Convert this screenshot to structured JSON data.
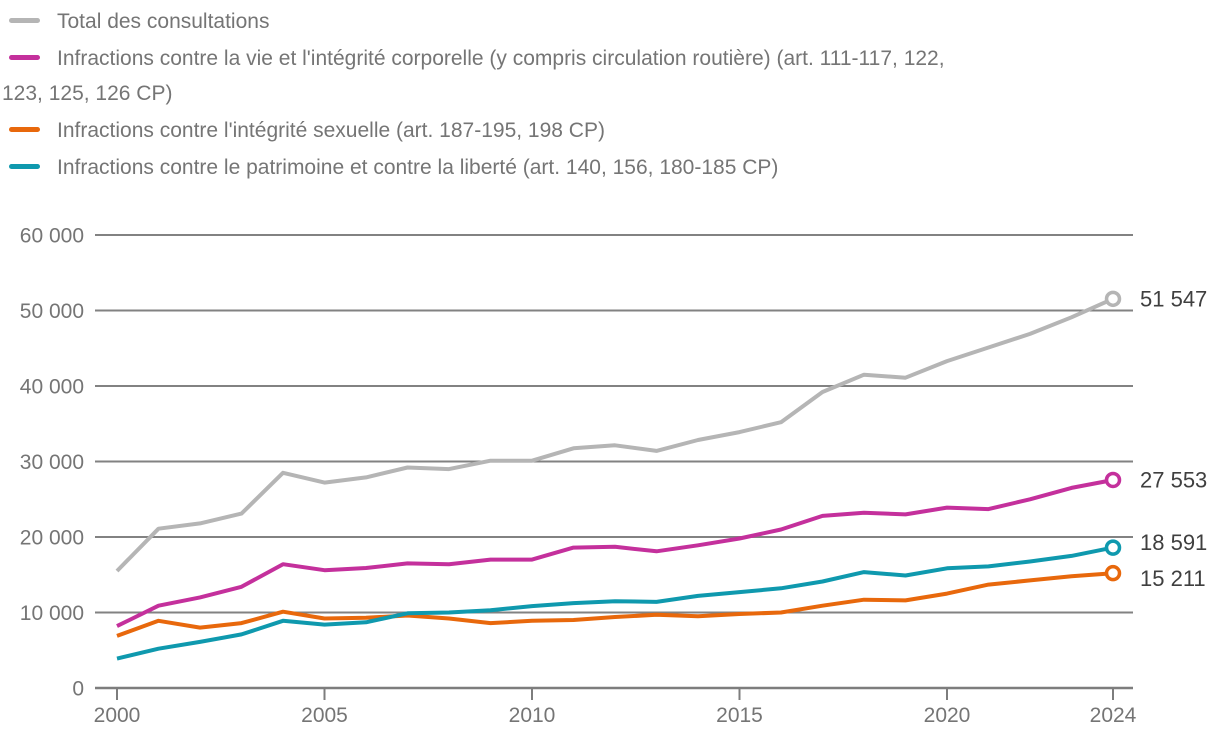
{
  "legend": {
    "items": [
      {
        "color": "#b5b5b5",
        "lines": [
          "Total des consultations"
        ]
      },
      {
        "color": "#c4309c",
        "lines": [
          "Infractions contre la vie et l'intégrité corporelle (y compris circulation routière) (art. 111-117, 122,",
          "123, 125, 126 CP)"
        ]
      },
      {
        "color": "#e8680c",
        "lines": [
          "Infractions contre l'intégrité sexuelle (art. 187-195, 198 CP)"
        ]
      },
      {
        "color": "#0f99ae",
        "lines": [
          "Infractions contre le patrimoine et contre la liberté (art. 140, 156, 180-185 CP)"
        ]
      }
    ]
  },
  "chart_data": {
    "type": "line",
    "title": "",
    "xlabel": "",
    "ylabel": "",
    "xlim": [
      2000,
      2024
    ],
    "ylim": [
      0,
      60000
    ],
    "grid": "horizontal",
    "legend_position": "top-left",
    "x": [
      2000,
      2001,
      2002,
      2003,
      2004,
      2005,
      2006,
      2007,
      2008,
      2009,
      2010,
      2011,
      2012,
      2013,
      2014,
      2015,
      2016,
      2017,
      2018,
      2019,
      2020,
      2021,
      2022,
      2023,
      2024
    ],
    "x_ticks": [
      {
        "value": 2000,
        "label": "2000"
      },
      {
        "value": 2005,
        "label": "2005"
      },
      {
        "value": 2010,
        "label": "2010"
      },
      {
        "value": 2015,
        "label": "2015"
      },
      {
        "value": 2020,
        "label": "2020"
      },
      {
        "value": 2024,
        "label": "2024"
      }
    ],
    "y_ticks": [
      {
        "value": 0,
        "label": "0"
      },
      {
        "value": 10000,
        "label": "10 000"
      },
      {
        "value": 20000,
        "label": "20 000"
      },
      {
        "value": 30000,
        "label": "30 000"
      },
      {
        "value": 40000,
        "label": "40 000"
      },
      {
        "value": 50000,
        "label": "50 000"
      },
      {
        "value": 60000,
        "label": "60 000"
      }
    ],
    "series": [
      {
        "name": "Total des consultations",
        "color": "#b5b5b5",
        "end_label": "51 547",
        "values": [
          15500,
          21100,
          21800,
          23100,
          28500,
          27200,
          27900,
          29200,
          29000,
          30100,
          30100,
          31750,
          32150,
          31400,
          32850,
          33900,
          35200,
          39200,
          41500,
          41100,
          43300,
          45100,
          46900,
          49100,
          51547
        ]
      },
      {
        "name": "Infractions contre la vie et l'intégrité corporelle (y compris circulation routière) (art. 111-117, 122, 123, 125, 126 CP)",
        "color": "#c4309c",
        "end_label": "27 553",
        "values": [
          8200,
          10900,
          12000,
          13400,
          16400,
          15600,
          15900,
          16500,
          16400,
          17000,
          17000,
          18600,
          18700,
          18100,
          18900,
          19800,
          21000,
          22800,
          23200,
          23000,
          23900,
          23700,
          25000,
          26500,
          27553
        ]
      },
      {
        "name": "Infractions contre l'intégrité sexuelle (art. 187-195, 198 CP)",
        "color": "#e8680c",
        "end_label": "15 211",
        "values": [
          6900,
          8900,
          8000,
          8600,
          10100,
          9200,
          9300,
          9600,
          9200,
          8600,
          8900,
          9000,
          9400,
          9700,
          9500,
          9800,
          10000,
          10900,
          11700,
          11600,
          12500,
          13700,
          14250,
          14800,
          15211
        ]
      },
      {
        "name": "Infractions contre le patrimoine et contre la liberté (art. 140, 156, 180-185 CP)",
        "color": "#0f99ae",
        "end_label": "18 591",
        "values": [
          3900,
          5200,
          6100,
          7100,
          8900,
          8400,
          8700,
          9900,
          10000,
          10300,
          10850,
          11250,
          11500,
          11400,
          12200,
          12700,
          13200,
          14100,
          15350,
          14900,
          15850,
          16100,
          16750,
          17500,
          18591
        ]
      }
    ],
    "style": {
      "grid_color": "#828282",
      "axis_color": "#7d7d7d",
      "axis_label_color": "#757575",
      "value_label_color": "#3f3f3f"
    }
  }
}
